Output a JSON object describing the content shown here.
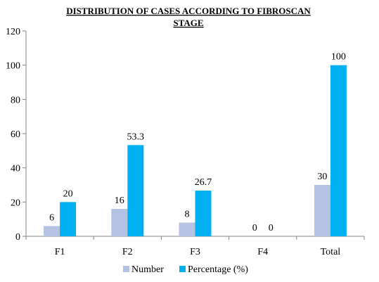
{
  "chart_data": {
    "type": "bar",
    "title_line1": "DISTRIBUTION OF CASES ACCORDING TO FIBROSCAN",
    "title_line2": "STAGE",
    "categories": [
      "F1",
      "F2",
      "F3",
      "F4",
      "Total"
    ],
    "series": [
      {
        "name": "Number",
        "values": [
          6,
          16,
          8,
          0,
          30
        ],
        "labels": [
          "6",
          "16",
          "8",
          "0",
          "30"
        ],
        "color": "#b4c3e4"
      },
      {
        "name": "Percentage (%)",
        "values": [
          20,
          53.3,
          26.7,
          0,
          100
        ],
        "labels": [
          "20",
          "53.3",
          "26.7",
          "0",
          "100"
        ],
        "color": "#00b0f0"
      }
    ],
    "ylim": [
      0,
      120
    ],
    "yticks": [
      0,
      20,
      40,
      60,
      80,
      100,
      120
    ],
    "xlabel": "",
    "ylabel": "",
    "grid": false,
    "legend": "bottom"
  }
}
